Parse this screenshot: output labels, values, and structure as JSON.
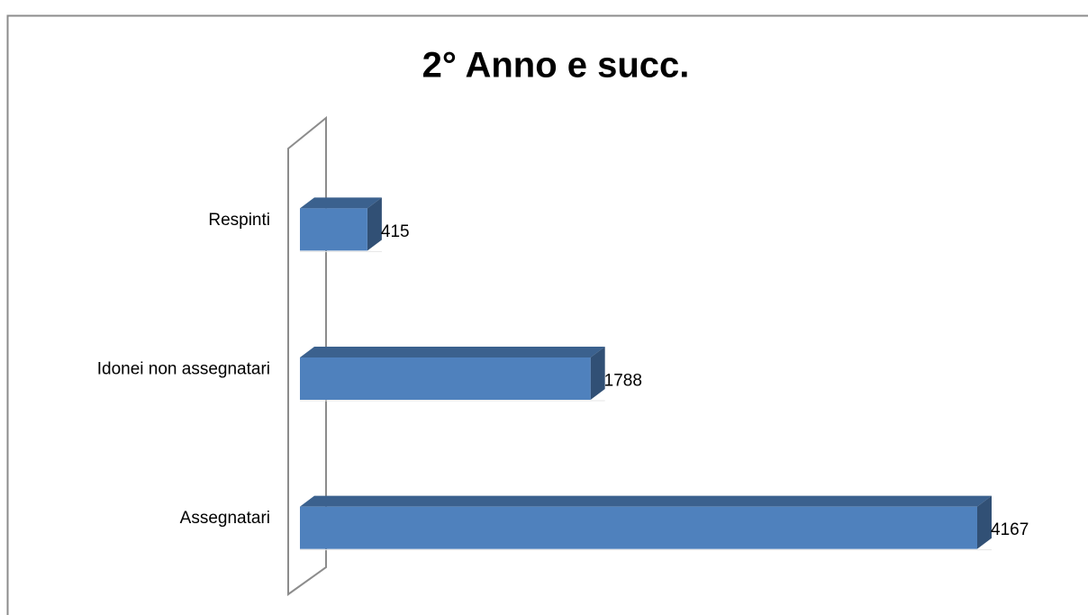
{
  "chart_data": {
    "type": "bar",
    "orientation": "horizontal",
    "title": "2° Anno e succ.",
    "categories": [
      "Respinti",
      "Idonei non assegnatari",
      "Assegnatari"
    ],
    "values": [
      415,
      1788,
      4167
    ],
    "color": "#4f81bd"
  }
}
